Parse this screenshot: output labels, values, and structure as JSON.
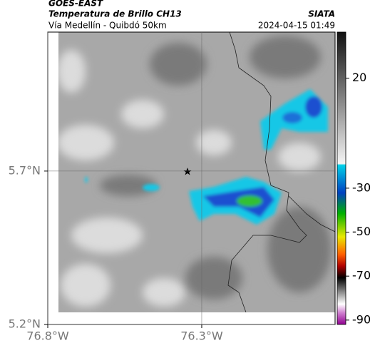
{
  "header": {
    "source": "GOES-EAST",
    "title": "Temperatura de Brillo CH13",
    "subtitle": "Vía Medellín - Quibdó 50km",
    "brand": "SIATA",
    "timestamp": "2024-04-15 01:49"
  },
  "map": {
    "xlim": [
      -76.8,
      -75.867
    ],
    "ylim": [
      5.2,
      6.153
    ],
    "xticks": [
      {
        "value": -76.8,
        "label": "76.8°W"
      },
      {
        "value": -76.3,
        "label": "76.3°W"
      }
    ],
    "yticks": [
      {
        "value": 5.2,
        "label": "5.2°N"
      },
      {
        "value": 5.7,
        "label": "5.7°N"
      }
    ],
    "grid": true
  },
  "colorbar": {
    "lim": [
      41,
      -92
    ],
    "ticks": [
      20,
      -30,
      -50,
      -70,
      -90
    ]
  }
}
